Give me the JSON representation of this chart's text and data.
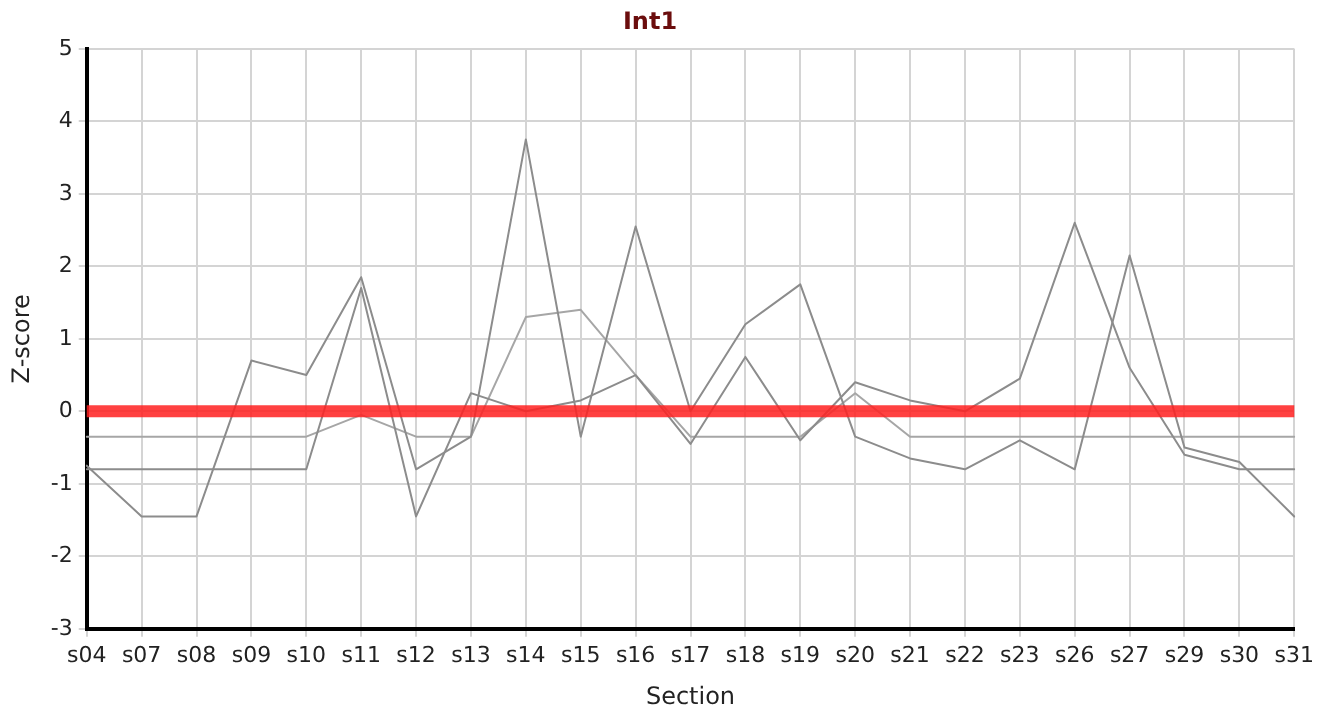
{
  "chart_data": {
    "type": "line",
    "title": "Int1",
    "xlabel": "Section",
    "ylabel": "Z-score",
    "categories": [
      "s04",
      "s07",
      "s08",
      "s09",
      "s10",
      "s11",
      "s12",
      "s13",
      "s14",
      "s15",
      "s16",
      "s17",
      "s18",
      "s19",
      "s20",
      "s21",
      "s22",
      "s23",
      "s26",
      "s27",
      "s29",
      "s30",
      "s31"
    ],
    "series": [
      {
        "color": "#8c8c8c",
        "values": [
          -0.75,
          -1.45,
          -1.45,
          0.7,
          0.5,
          1.85,
          -0.8,
          -0.35,
          3.75,
          -0.35,
          2.55,
          0,
          1.2,
          1.75,
          -0.35,
          -0.65,
          -0.8,
          -0.4,
          -0.8,
          2.15,
          -0.5,
          -0.7,
          -1.45
        ]
      },
      {
        "color": "#8c8c8c",
        "values": [
          -0.8,
          -0.8,
          -0.8,
          -0.8,
          -0.8,
          1.7,
          -1.45,
          0.25,
          0,
          0.15,
          0.5,
          -0.45,
          0.75,
          -0.4,
          0.4,
          0.15,
          0,
          0.45,
          2.6,
          0.6,
          -0.6,
          -0.8,
          -0.8
        ]
      },
      {
        "color": "#a6a6a6",
        "values": [
          -0.35,
          -0.35,
          -0.35,
          -0.35,
          -0.35,
          -0.05,
          -0.35,
          -0.35,
          1.3,
          1.4,
          0.5,
          -0.35,
          -0.35,
          -0.35,
          0.25,
          -0.35,
          -0.35,
          -0.35,
          -0.35,
          -0.35,
          -0.35,
          -0.35,
          -0.35
        ]
      }
    ],
    "ylim": [
      -3,
      5
    ],
    "yticks": [
      -3,
      -2,
      -1,
      0,
      1,
      2,
      3,
      4,
      5
    ],
    "grid": true,
    "legend": false,
    "marker": "none",
    "line_style": "solid",
    "ref_lines": [
      {
        "axis": "y",
        "value": 0,
        "color": "#ff2020"
      }
    ]
  }
}
